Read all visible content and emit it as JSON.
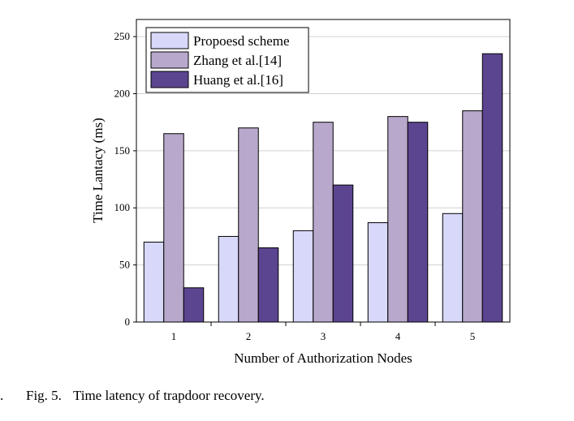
{
  "figure": {
    "margin_mark": ".",
    "caption_label": "Fig. 5.",
    "caption_text": "Time latency of trapdoor recovery."
  },
  "chart_data": {
    "type": "bar",
    "categories": [
      "1",
      "2",
      "3",
      "4",
      "5"
    ],
    "series": [
      {
        "name": "Propoesd scheme",
        "color": "#d8d8fa",
        "values": [
          70,
          75,
          80,
          87,
          95
        ]
      },
      {
        "name": "Zhang et al.[14]",
        "color": "#b8a8cc",
        "values": [
          165,
          170,
          175,
          180,
          185
        ]
      },
      {
        "name": "Huang et al.[16]",
        "color": "#5c4590",
        "values": [
          30,
          65,
          120,
          175,
          235
        ]
      }
    ],
    "title": "",
    "xlabel": "Number of Authorization Nodes",
    "ylabel": "Time Lantacy (ms)",
    "ylim": [
      0,
      265
    ],
    "yticks": [
      0,
      50,
      100,
      150,
      200,
      250
    ],
    "grid": true,
    "legend": "top-left"
  }
}
